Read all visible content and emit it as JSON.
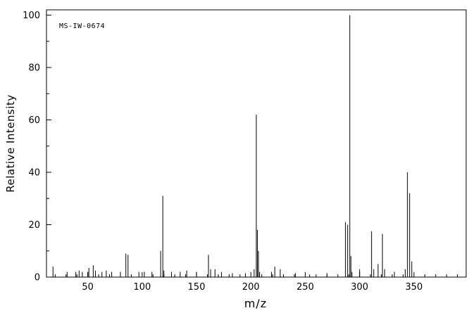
{
  "annotation": {
    "label": "MS-IW-0674"
  },
  "chart_data": {
    "type": "bar",
    "subtype": "mass-spectrum-stick-plot",
    "title": "",
    "xlabel": "m/z",
    "ylabel": "Relative Intensity",
    "xlim": [
      12,
      398
    ],
    "ylim": [
      0,
      102
    ],
    "x_major_ticks": [
      50,
      100,
      150,
      200,
      250,
      300,
      350
    ],
    "x_minor_tick_step": 10,
    "y_major_ticks": [
      0,
      20,
      40,
      60,
      80,
      100
    ],
    "y_minor_tick_step": 10,
    "grid": false,
    "legend": "none",
    "line_color": "#000000",
    "background_color": "#ffffff",
    "peaks": [
      [
        18,
        4
      ],
      [
        31,
        2
      ],
      [
        39,
        2
      ],
      [
        42,
        2.5
      ],
      [
        45,
        2
      ],
      [
        50,
        2
      ],
      [
        51,
        3.5
      ],
      [
        55,
        4.5
      ],
      [
        57,
        2.5
      ],
      [
        63,
        2
      ],
      [
        67,
        2.5
      ],
      [
        72,
        2
      ],
      [
        80,
        2
      ],
      [
        85,
        9
      ],
      [
        87,
        8.5
      ],
      [
        97,
        2
      ],
      [
        102,
        2
      ],
      [
        109,
        2
      ],
      [
        117,
        10
      ],
      [
        119,
        31
      ],
      [
        120,
        2.5
      ],
      [
        127,
        2
      ],
      [
        135,
        2
      ],
      [
        141,
        2.5
      ],
      [
        150,
        2
      ],
      [
        161,
        8.5
      ],
      [
        163,
        3
      ],
      [
        167,
        3
      ],
      [
        173,
        2
      ],
      [
        183,
        1.5
      ],
      [
        195,
        1.5
      ],
      [
        203,
        3
      ],
      [
        205,
        62
      ],
      [
        206,
        18
      ],
      [
        207,
        10
      ],
      [
        208,
        2
      ],
      [
        219,
        2
      ],
      [
        222,
        4
      ],
      [
        227,
        3
      ],
      [
        241,
        1.5
      ],
      [
        254,
        1
      ],
      [
        270,
        1.5
      ],
      [
        287,
        21
      ],
      [
        289,
        20
      ],
      [
        291,
        100
      ],
      [
        292,
        8
      ],
      [
        293,
        2
      ],
      [
        300,
        3
      ],
      [
        311,
        17.5
      ],
      [
        313,
        3
      ],
      [
        317,
        5
      ],
      [
        321,
        16.5
      ],
      [
        323,
        3
      ],
      [
        332,
        2
      ],
      [
        342,
        3
      ],
      [
        344,
        40
      ],
      [
        346,
        32
      ],
      [
        348,
        6
      ]
    ]
  }
}
